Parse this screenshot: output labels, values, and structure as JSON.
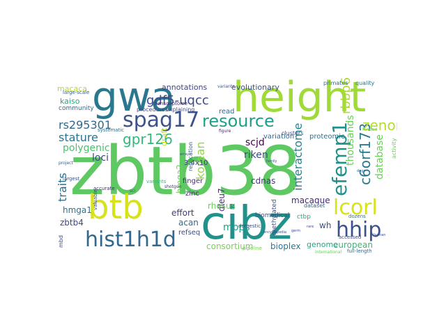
{
  "words": [
    {
      "text": "zbtb38",
      "color": "#5ec962"
    },
    {
      "text": "cibz",
      "color": "#21918c"
    },
    {
      "text": "height",
      "color": "#a0da39"
    },
    {
      "text": "gwa",
      "color": "#2a788e"
    },
    {
      "text": "btb",
      "color": "#d8e219"
    },
    {
      "text": "hist1h1d",
      "color": "#31688e"
    },
    {
      "text": "spag17",
      "color": "#3b528b"
    },
    {
      "text": "resource",
      "color": "#1f9e89"
    },
    {
      "text": "efemp1",
      "color": "#21918c"
    },
    {
      "text": "lcorl",
      "color": "#d8e219"
    },
    {
      "text": "hhip",
      "color": "#3b528b"
    },
    {
      "text": "c6orf173",
      "color": "#2a788e"
    },
    {
      "text": "gdf5-uqcc",
      "color": "#3e4989"
    },
    {
      "text": "rs295301",
      "color": "#31688e"
    },
    {
      "text": "stature",
      "color": "#2c728e"
    },
    {
      "text": "gpr126",
      "color": "#35b779"
    },
    {
      "text": "zenon",
      "color": "#b5de2b"
    },
    {
      "text": "rbbp6",
      "color": "#addc30"
    },
    {
      "text": "polygenic",
      "color": "#4ac16d"
    },
    {
      "text": "traits",
      "color": "#2c728e"
    },
    {
      "text": "loci",
      "color": "#414487"
    },
    {
      "text": "korean",
      "color": "#90d743"
    },
    {
      "text": "interactome",
      "color": "#26828e"
    },
    {
      "text": "thousands",
      "color": "#6ccd5a"
    },
    {
      "text": "database",
      "color": "#6ccd5a"
    },
    {
      "text": "scjd",
      "color": "#440154"
    },
    {
      "text": "riken",
      "color": "#3e4989"
    },
    {
      "text": "cdnas",
      "color": "#46337e"
    },
    {
      "text": "hmga2",
      "color": "#6ccd5a"
    },
    {
      "text": "hmga1",
      "color": "#2c728e"
    },
    {
      "text": "dleu7",
      "color": "#472d7b"
    },
    {
      "text": "rhesus",
      "color": "#6ccd5a"
    },
    {
      "text": "macaque",
      "color": "#482878"
    },
    {
      "text": "mbps",
      "color": "#1f9e89"
    },
    {
      "text": "effort",
      "color": "#443983"
    },
    {
      "text": "acan",
      "color": "#31688e"
    },
    {
      "text": "zbtb4",
      "color": "#3e4989"
    },
    {
      "text": "wh",
      "color": "#3b528b"
    },
    {
      "text": "consortium",
      "color": "#7ad151"
    },
    {
      "text": "bioplex",
      "color": "#2a788e"
    },
    {
      "text": "european",
      "color": "#35b779"
    },
    {
      "text": "genome",
      "color": "#20a486"
    },
    {
      "text": "annotations",
      "color": "#414487"
    },
    {
      "text": "evolutionary",
      "color": "#3b528b"
    },
    {
      "text": "macaca",
      "color": "#b5de2b"
    },
    {
      "text": "kaiso",
      "color": "#22a884"
    },
    {
      "text": "community",
      "color": "#31688e"
    },
    {
      "text": "draft",
      "color": "#c2df23"
    },
    {
      "text": "read",
      "color": "#31688e"
    },
    {
      "text": "variation",
      "color": "#31688e"
    },
    {
      "text": "proteomic",
      "color": "#2c728e"
    },
    {
      "text": "refseq",
      "color": "#3e4989"
    },
    {
      "text": "finger",
      "color": "#472d7b"
    },
    {
      "text": "zinc",
      "color": "#482475"
    },
    {
      "text": "3.4x10",
      "color": "#433e85"
    },
    {
      "text": "methylated",
      "color": "#3b528b"
    },
    {
      "text": "ctbp",
      "color": "#22a884"
    },
    {
      "text": "dataset",
      "color": "#31688e"
    },
    {
      "text": "biomedical",
      "color": "#3b528b"
    },
    {
      "text": "clusters",
      "color": "#3e4989"
    },
    {
      "text": "replication",
      "color": "#365c8d"
    },
    {
      "text": "quality",
      "color": "#2c728e"
    },
    {
      "text": "primates",
      "color": "#2c728e"
    },
    {
      "text": "large-scale",
      "color": "#38588c"
    },
    {
      "text": "procedures",
      "color": "#3e4989"
    },
    {
      "text": "explaining",
      "color": "#3e4989"
    },
    {
      "text": "transcriptome",
      "color": "#472d7b"
    },
    {
      "text": "systematic",
      "color": "#2c728e"
    },
    {
      "text": "variants",
      "color": "#35b779"
    },
    {
      "text": "domestic",
      "color": "#3e4989"
    },
    {
      "text": "pipeline",
      "color": "#7ad151"
    },
    {
      "text": "full-length",
      "color": "#31688e"
    },
    {
      "text": "accessed",
      "color": "#3e4989"
    },
    {
      "text": "dozens",
      "color": "#2c728e"
    },
    {
      "text": "largest",
      "color": "#3b528b"
    },
    {
      "text": "accurate",
      "color": "#482878"
    },
    {
      "text": "project",
      "color": "#365c8d"
    },
    {
      "text": "funded",
      "color": "#6ccd5a"
    },
    {
      "text": "activity",
      "color": "#6ccd5a"
    },
    {
      "text": "encyclopedia",
      "color": "#3e4989"
    },
    {
      "text": "international",
      "color": "#6ccd5a"
    },
    {
      "text": "variants",
      "color": "#3b528b"
    },
    {
      "text": "shotgun",
      "color": "#472d7b"
    },
    {
      "text": "valuable",
      "color": "#3e4989"
    },
    {
      "text": "figure",
      "color": "#482878"
    },
    {
      "text": "sci",
      "color": "#3e4989"
    },
    {
      "text": "mbd",
      "color": "#3e4989"
    },
    {
      "text": "arrays",
      "color": "#3b528b"
    },
    {
      "text": "dogs",
      "color": "#31688e"
    },
    {
      "text": "family",
      "color": "#3e4989"
    },
    {
      "text": "rare",
      "color": "#3e4989"
    },
    {
      "text": "germ",
      "color": "#3e4989"
    },
    {
      "text": "human",
      "color": "#3e4989"
    }
  ]
}
